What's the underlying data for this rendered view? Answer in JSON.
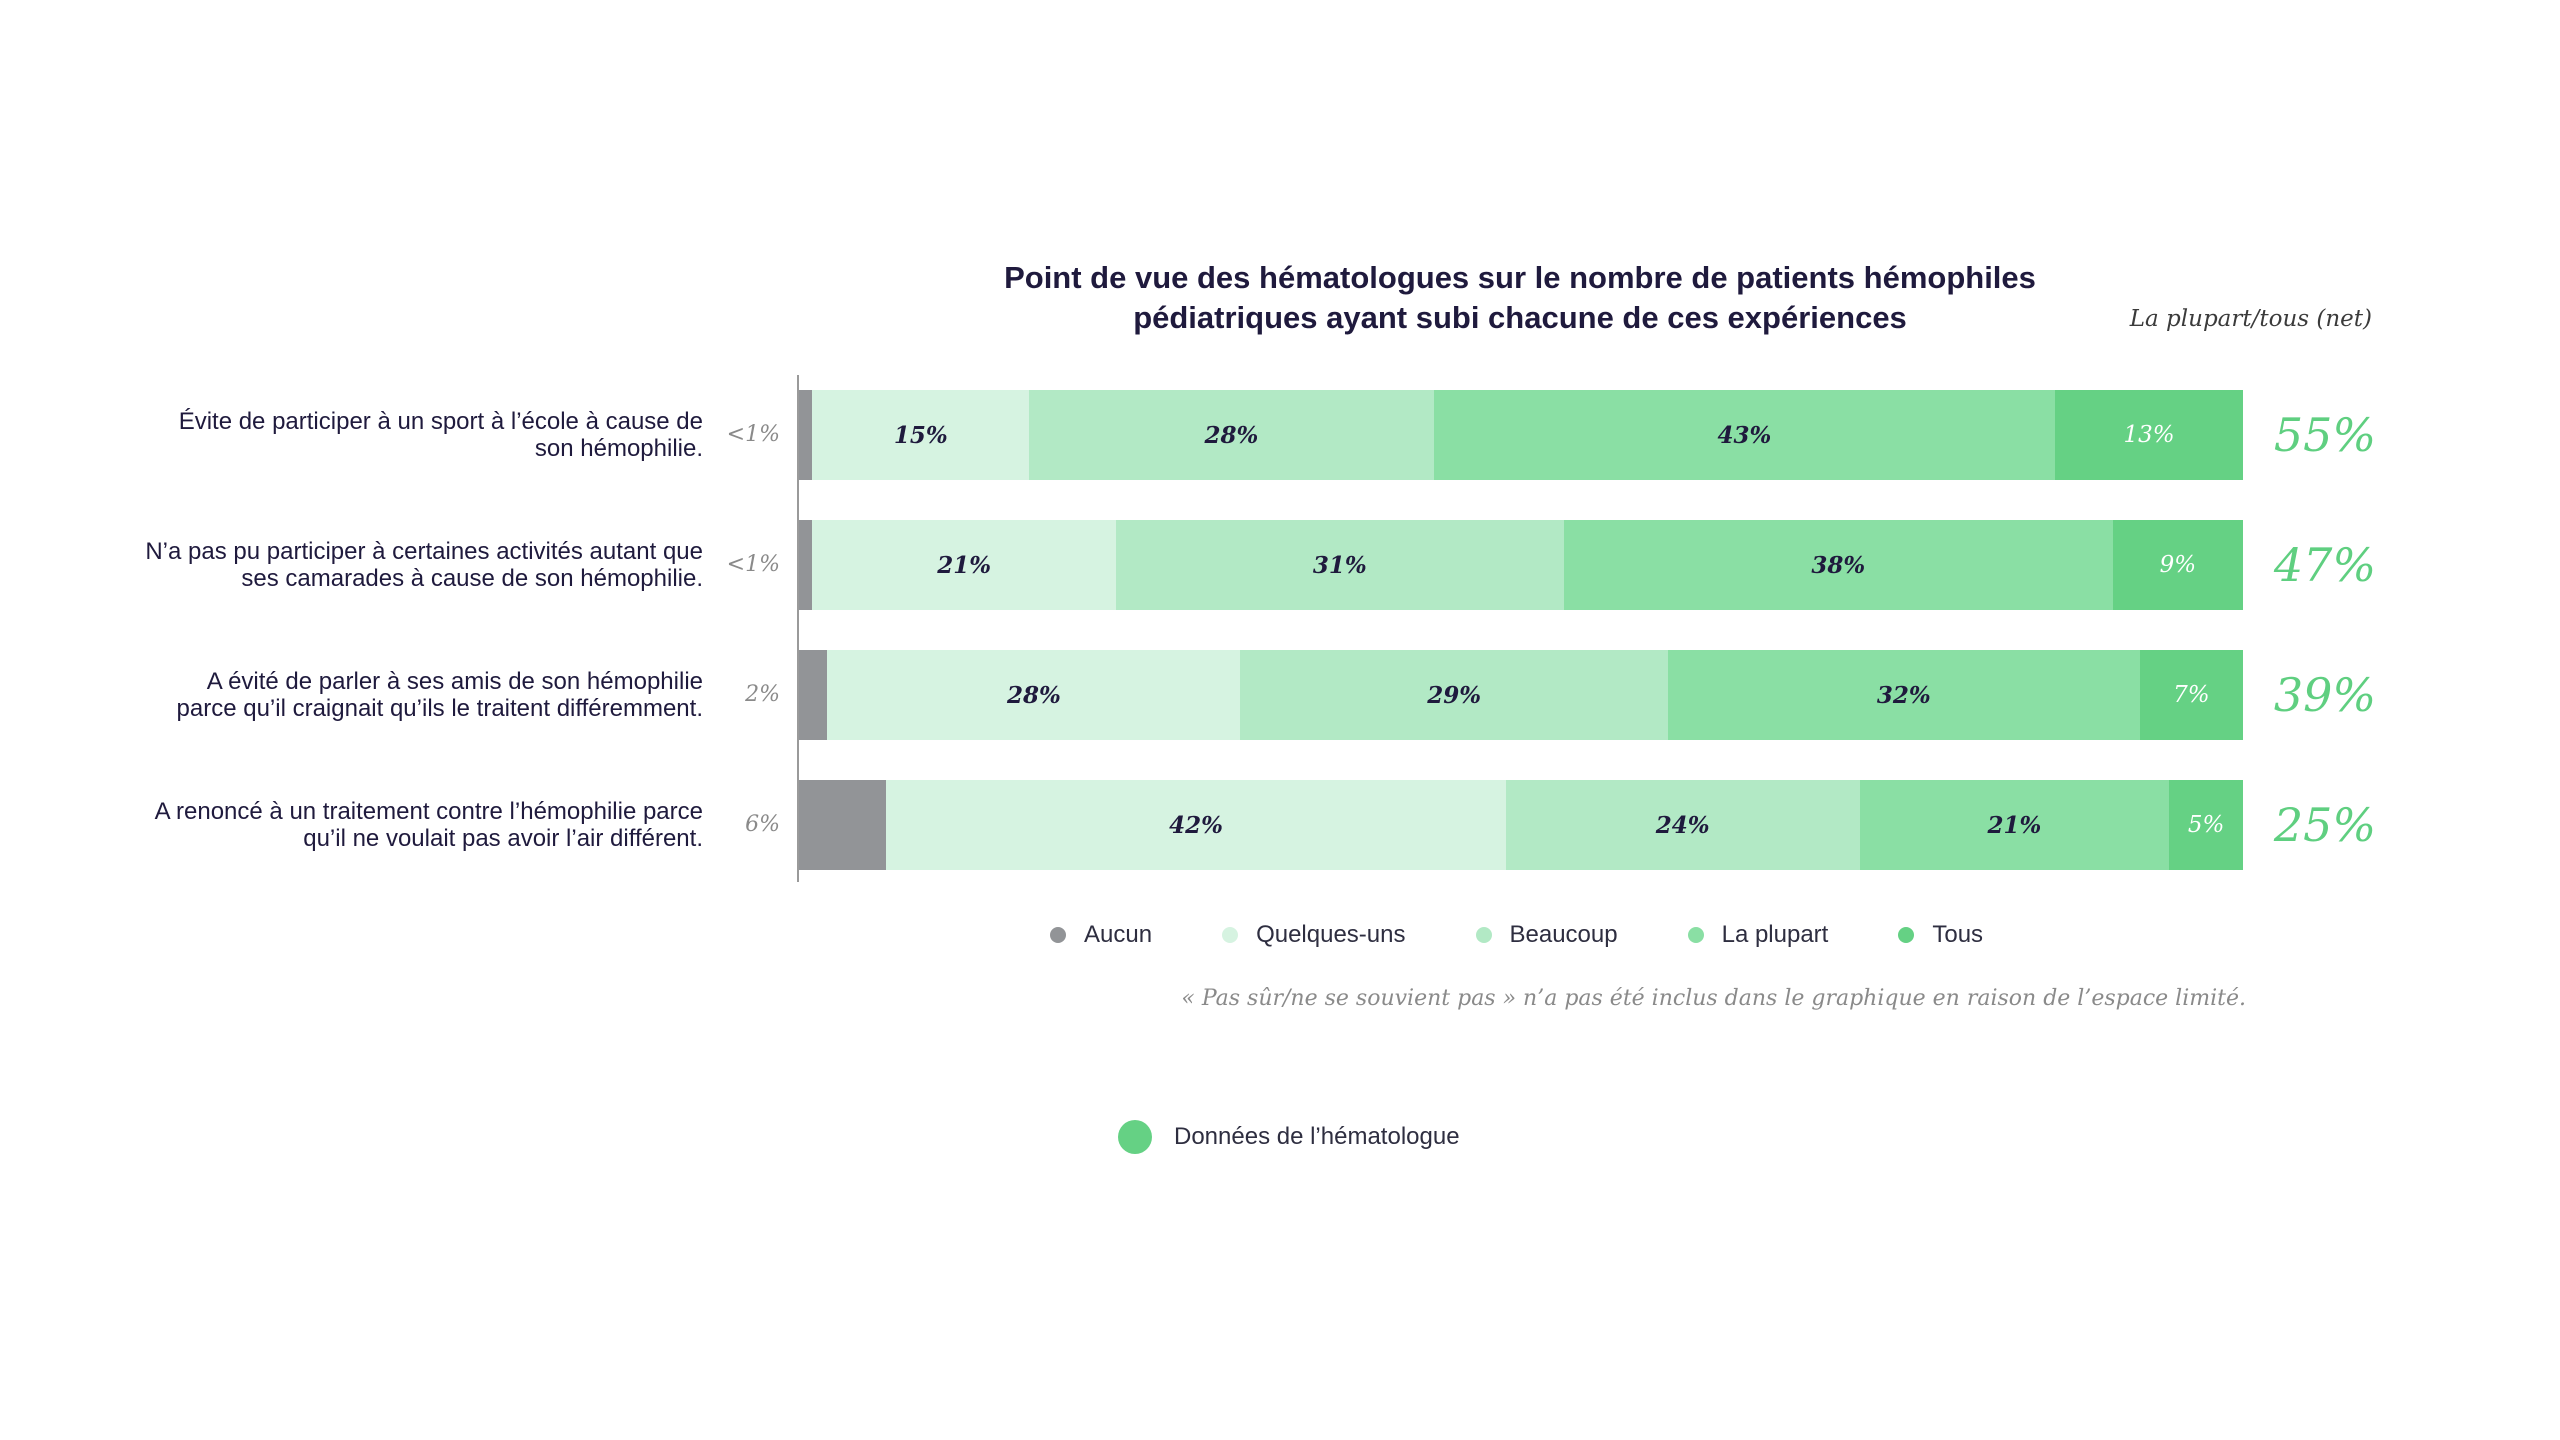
{
  "chart_data": {
    "type": "bar",
    "orientation": "horizontal-stacked-100",
    "title_line1": "Point de vue des hématologues sur le nombre de patients hémophiles",
    "title_line2": "pédiatriques ayant subi chacune de ces expériences",
    "net_header": "La plupart/tous (net)",
    "categories": [
      "Évite de participer à un sport à l’école à cause de son hémophilie.",
      "N’a pas pu participer à certaines activités autant que ses camarades à cause de son hémophilie.",
      "A évité de parler à ses amis de son hémophilie parce qu’il craignait qu’ils le traitent différemment.",
      "A renoncé à un traitement contre l’hémophilie parce qu’il ne voulait pas avoir l’air différent."
    ],
    "series": [
      {
        "name": "Aucun",
        "color": "#929497",
        "values": [
          1,
          1,
          2,
          6
        ],
        "labels": [
          "<1%",
          "<1%",
          "2%",
          "6%"
        ]
      },
      {
        "name": "Quelques-uns",
        "color": "#d6f3e1",
        "values": [
          15,
          21,
          28,
          42
        ],
        "labels": [
          "15%",
          "21%",
          "28%",
          "42%"
        ]
      },
      {
        "name": "Beaucoup",
        "color": "#b2e9c5",
        "values": [
          28,
          31,
          29,
          24
        ],
        "labels": [
          "28%",
          "31%",
          "29%",
          "24%"
        ]
      },
      {
        "name": "La plupart",
        "color": "#8adfa4",
        "values": [
          43,
          38,
          32,
          21
        ],
        "labels": [
          "43%",
          "38%",
          "32%",
          "21%"
        ]
      },
      {
        "name": "Tous",
        "color": "#65d184",
        "values": [
          13,
          9,
          7,
          5
        ],
        "labels": [
          "13%",
          "9%",
          "7%",
          "5%"
        ]
      }
    ],
    "net_values": [
      "55%",
      "47%",
      "39%",
      "25%"
    ],
    "net_color": "#5fcf80",
    "footnote": "« Pas sûr/ne se souvient pas » n’a pas été inclus dans le graphique en raison de l’espace limité.",
    "source_label": "Données de l’hématologue",
    "source_color": "#65d184"
  }
}
